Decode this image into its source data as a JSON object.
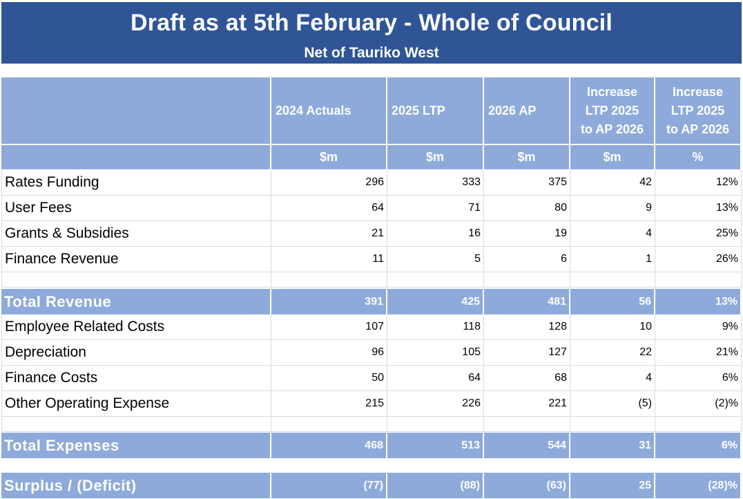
{
  "header": {
    "title": "Draft as at 5th February  - Whole of Council",
    "subtitle": "Net of Tauriko West"
  },
  "columns": [
    {
      "label": "2024 Actuals",
      "unit": "$m"
    },
    {
      "label": "2025 LTP",
      "unit": "$m"
    },
    {
      "label": "2026 AP",
      "unit": "$m"
    },
    {
      "label": "Increase\nLTP 2025\nto AP 2026",
      "unit": "$m"
    },
    {
      "label": "Increase\nLTP 2025\nto AP 2026",
      "unit": "%"
    }
  ],
  "revenue_rows": [
    {
      "label": "Rates Funding",
      "values": [
        "296",
        "333",
        "375",
        "42",
        "12%"
      ]
    },
    {
      "label": "User Fees",
      "values": [
        "64",
        "71",
        "80",
        "9",
        "13%"
      ]
    },
    {
      "label": "Grants & Subsidies",
      "values": [
        "21",
        "16",
        "19",
        "4",
        "25%"
      ]
    },
    {
      "label": "Finance Revenue",
      "values": [
        "11",
        "5",
        "6",
        "1",
        "26%"
      ]
    }
  ],
  "total_revenue": {
    "label": "Total Revenue",
    "values": [
      "391",
      "425",
      "481",
      "56",
      "13%"
    ]
  },
  "expense_rows": [
    {
      "label": "Employee Related Costs",
      "values": [
        "107",
        "118",
        "128",
        "10",
        "9%"
      ]
    },
    {
      "label": "Depreciation",
      "values": [
        "96",
        "105",
        "127",
        "22",
        "21%"
      ]
    },
    {
      "label": "Finance Costs",
      "values": [
        "50",
        "64",
        "68",
        "4",
        "6%"
      ]
    },
    {
      "label": "Other Operating  Expense",
      "values": [
        "215",
        "226",
        "221",
        "(5)",
        "(2)%"
      ]
    }
  ],
  "total_expenses": {
    "label": "Total Expenses",
    "values": [
      "468",
      "513",
      "544",
      "31",
      "6%"
    ]
  },
  "surplus": {
    "label": "Surplus / (Deficit)",
    "values": [
      "(77)",
      "(88)",
      "(63)",
      "25",
      "(28)%"
    ]
  },
  "colors": {
    "banner": "#2f5597",
    "accent": "#8eaadb",
    "grid": "#d9d9d9"
  }
}
